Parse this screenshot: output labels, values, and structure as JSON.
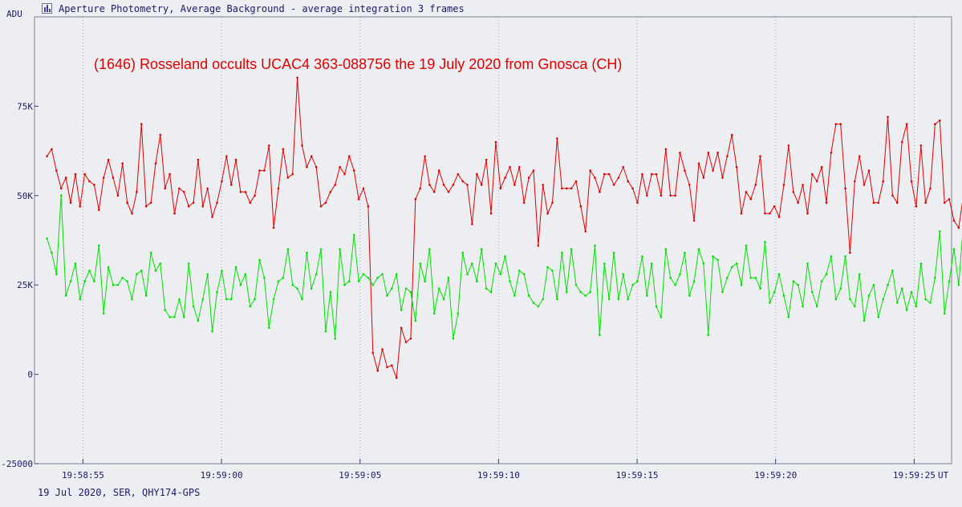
{
  "window": {
    "title": "Aperture Photometry, Average Background - average integration 3 frames",
    "icon": "chart-icon"
  },
  "footer": {
    "info": "19 Jul 2020, SER, QHY174-GPS"
  },
  "chart_data": {
    "type": "line",
    "title": "(1646) Rosseland occults UCAC4 363-088756 the 19 July 2020 from Gnosca (CH)",
    "ylabel": "ADU",
    "xlabel": "UT",
    "ylim": [
      -25000,
      100000
    ],
    "xlim": [
      -1.75,
      31.35
    ],
    "xlim_note_units": "seconds after 19:58:55",
    "yticks": [
      {
        "value": -25000,
        "label": "-25000"
      },
      {
        "value": 0,
        "label": "0"
      },
      {
        "value": 25000,
        "label": "25K"
      },
      {
        "value": 50000,
        "label": "50K"
      },
      {
        "value": 75000,
        "label": "75K"
      }
    ],
    "xticks": [
      {
        "value": 0,
        "label": "19:58:55"
      },
      {
        "value": 5,
        "label": "19:59:00"
      },
      {
        "value": 10,
        "label": "19:59:05"
      },
      {
        "value": 15,
        "label": "19:59:10"
      },
      {
        "value": 20,
        "label": "19:59:15"
      },
      {
        "value": 25,
        "label": "19:59:20"
      },
      {
        "value": 30,
        "label": "19:59:25"
      }
    ],
    "grid": "dotted vertical only",
    "x_start": -1.3,
    "x_step": 0.1705,
    "series": [
      {
        "color": "#e00000",
        "values": [
          61000,
          63000,
          57000,
          52000,
          55000,
          48000,
          56000,
          47000,
          56000,
          54000,
          53000,
          46000,
          55000,
          60000,
          55000,
          50000,
          59000,
          48000,
          45000,
          51000,
          70000,
          47000,
          48000,
          59000,
          67000,
          52000,
          56000,
          45000,
          52000,
          51000,
          47000,
          48000,
          60000,
          47000,
          52000,
          44000,
          48000,
          54000,
          61000,
          53000,
          60000,
          51000,
          51000,
          48000,
          50000,
          57000,
          57000,
          64000,
          41000,
          52000,
          63000,
          55000,
          56000,
          83000,
          64000,
          58000,
          61000,
          58000,
          47000,
          48000,
          51000,
          53000,
          58000,
          56000,
          61000,
          57000,
          49000,
          52000,
          47000,
          6000,
          1000,
          7000,
          2000,
          2500,
          -1000,
          13000,
          9000,
          10000,
          49000,
          52000,
          61000,
          53000,
          51000,
          57000,
          53000,
          51000,
          53000,
          56000,
          54000,
          53000,
          42000,
          56000,
          53000,
          60000,
          45000,
          65000,
          52000,
          55000,
          58000,
          53000,
          58000,
          48000,
          55000,
          57000,
          36000,
          53000,
          45000,
          48000,
          66000,
          52000,
          52000,
          52000,
          54000,
          47000,
          40000,
          57000,
          55000,
          51000,
          56000,
          56000,
          53000,
          55000,
          58000,
          54000,
          52000,
          48000,
          56000,
          50000,
          56000,
          56000,
          50000,
          63000,
          50000,
          50000,
          62000,
          57000,
          53000,
          43000,
          59000,
          55000,
          62000,
          57000,
          62000,
          55000,
          61000,
          67000,
          58000,
          45000,
          51000,
          49000,
          53000,
          61000,
          45000,
          45000,
          47000,
          44000,
          53000,
          64000,
          51000,
          48000,
          53000,
          45000,
          56000,
          54000,
          58000,
          48000,
          62000,
          70000,
          70000,
          52000,
          34000,
          54000,
          61000,
          53000,
          57000,
          48000,
          48000,
          54000,
          72000,
          50000,
          48000,
          65000,
          70000,
          54000,
          47000,
          64000,
          48000,
          52000,
          70000,
          71000,
          48000,
          49000,
          43000,
          41000,
          50000,
          55000,
          49000
        ]
      },
      {
        "color": "#00e000",
        "values": [
          38000,
          34000,
          28000,
          50000,
          22000,
          26000,
          31000,
          21000,
          26000,
          29000,
          26000,
          36000,
          17000,
          30000,
          25000,
          25000,
          27000,
          26000,
          21000,
          28000,
          29000,
          22000,
          34000,
          29000,
          31000,
          18000,
          16000,
          16000,
          21000,
          16000,
          31000,
          19000,
          15000,
          21000,
          28000,
          12000,
          23000,
          29000,
          21000,
          21000,
          30000,
          25000,
          28000,
          19000,
          21000,
          32000,
          27000,
          13000,
          21000,
          26000,
          27000,
          35000,
          25000,
          24000,
          21000,
          34000,
          24000,
          28000,
          35000,
          12000,
          23000,
          10000,
          35000,
          25000,
          26000,
          39000,
          26000,
          28000,
          27000,
          25000,
          27000,
          28000,
          22000,
          24000,
          28000,
          18000,
          24000,
          23000,
          15000,
          31000,
          26000,
          35000,
          17000,
          24000,
          21000,
          27000,
          10000,
          17000,
          34000,
          28000,
          31000,
          26000,
          35000,
          24000,
          23000,
          31000,
          28000,
          33000,
          26000,
          22000,
          29000,
          28000,
          22000,
          20000,
          19000,
          21000,
          30000,
          29000,
          21000,
          34000,
          23000,
          35000,
          25000,
          23000,
          22000,
          23000,
          36000,
          11000,
          31000,
          21000,
          34000,
          21000,
          28000,
          21000,
          25000,
          26000,
          33000,
          22000,
          31000,
          19000,
          16000,
          35000,
          27000,
          25000,
          28000,
          34000,
          22000,
          26000,
          35000,
          31000,
          11000,
          33000,
          32000,
          23000,
          27000,
          30000,
          31000,
          25000,
          36000,
          27000,
          27000,
          24000,
          37000,
          20000,
          23000,
          28000,
          22000,
          16000,
          26000,
          25000,
          19000,
          31000,
          23000,
          19000,
          26000,
          28000,
          33000,
          21000,
          24000,
          33000,
          21000,
          19000,
          28000,
          15000,
          22000,
          25000,
          16000,
          21000,
          25000,
          29000,
          20000,
          24000,
          18000,
          23000,
          19000,
          31000,
          21000,
          20000,
          27000,
          40000,
          17000,
          26000,
          35000,
          25000,
          42000,
          25000,
          36000,
          28000,
          12000,
          18000,
          32000
        ]
      }
    ]
  }
}
